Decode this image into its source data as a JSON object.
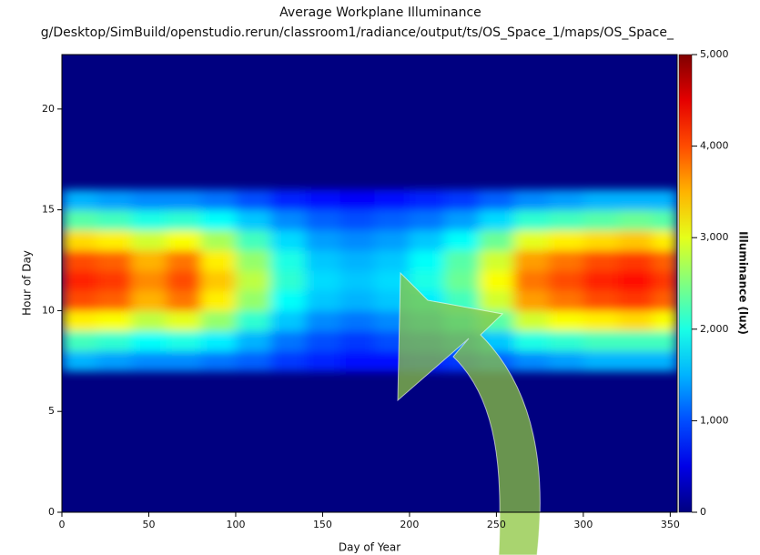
{
  "chart_data": {
    "type": "heatmap",
    "title": "Average Workplane Illuminance",
    "subtitle": "g/Desktop/SimBuild/openstudio.rerun/classroom1/radiance/output/ts/OS_Space_1/maps/OS_Space_",
    "x_label": "Day of Year",
    "y_label": "Hour of Day",
    "colorbar_label": "Illuminance (lux)",
    "xbins": [
      0,
      20,
      40,
      60,
      80,
      100,
      120,
      140,
      160,
      180,
      200,
      220,
      240,
      260,
      280,
      300,
      320,
      340,
      354
    ],
    "ybins": [
      7,
      8,
      9,
      10,
      11,
      12,
      13,
      14,
      15,
      16
    ],
    "z": [
      [
        1500,
        1400,
        1300,
        1300,
        1200,
        1100,
        900,
        800,
        700,
        700,
        800,
        900,
        1100,
        1300,
        1400,
        1500,
        1500,
        1500
      ],
      [
        2200,
        2100,
        1900,
        2000,
        1800,
        1500,
        1200,
        1000,
        900,
        1000,
        1100,
        1300,
        1600,
        2000,
        2100,
        2200,
        2200,
        2200
      ],
      [
        3200,
        3100,
        2800,
        3000,
        2600,
        2100,
        1600,
        1300,
        1200,
        1300,
        1500,
        1800,
        2300,
        2900,
        3100,
        3200,
        3300,
        3100
      ],
      [
        4000,
        3900,
        3500,
        3800,
        3200,
        2600,
        1900,
        1600,
        1500,
        1600,
        1800,
        2200,
        2900,
        3600,
        3800,
        4000,
        4100,
        3900
      ],
      [
        4200,
        4100,
        3700,
        4000,
        3400,
        2800,
        2100,
        1700,
        1600,
        1700,
        2000,
        2400,
        3100,
        3800,
        4000,
        4200,
        4300,
        4100
      ],
      [
        4000,
        3900,
        3500,
        3800,
        3200,
        2600,
        2000,
        1600,
        1500,
        1600,
        1900,
        2300,
        2900,
        3600,
        3800,
        4000,
        4100,
        3900
      ],
      [
        3300,
        3200,
        2900,
        3100,
        2700,
        2200,
        1700,
        1400,
        1300,
        1400,
        1600,
        1900,
        2400,
        3000,
        3200,
        3300,
        3400,
        3200
      ],
      [
        2300,
        2200,
        2000,
        2100,
        1900,
        1600,
        1300,
        1100,
        1000,
        1100,
        1200,
        1400,
        1700,
        2100,
        2200,
        2300,
        2400,
        2300
      ],
      [
        1500,
        1400,
        1300,
        1300,
        1200,
        1000,
        800,
        700,
        600,
        700,
        800,
        900,
        1100,
        1300,
        1400,
        1500,
        1500,
        1500
      ]
    ],
    "xlim": [
      0,
      354
    ],
    "xticks": [
      0,
      50,
      100,
      150,
      200,
      250,
      300,
      350
    ],
    "ylim": [
      0,
      22.7
    ],
    "yticks": [
      0,
      5,
      10,
      15,
      20
    ],
    "zlim": [
      0,
      5000
    ],
    "zticks": [
      0,
      {
        "value": 1000,
        "label": "1,000"
      },
      {
        "value": 2000,
        "label": "2,000"
      },
      {
        "value": 3000,
        "label": "3,000"
      },
      {
        "value": 4000,
        "label": "4,000"
      },
      {
        "value": 5000,
        "label": "5,000"
      }
    ],
    "colormap": "jet"
  }
}
